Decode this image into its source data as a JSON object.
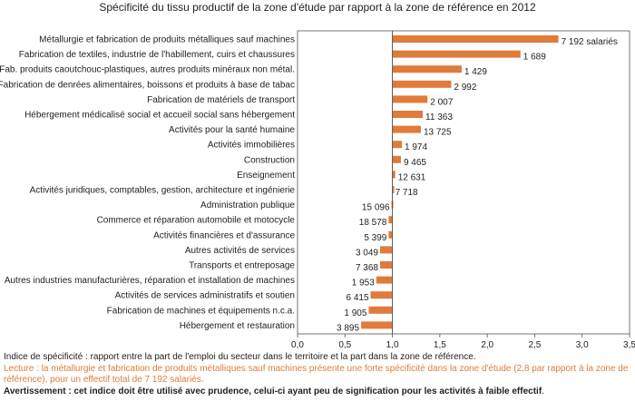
{
  "chart_data": {
    "type": "bar",
    "orientation": "horizontal",
    "title": "Spécificité du tissu productif de la zone d'étude par rapport à la zone de référence en 2012",
    "categories": [
      "Métallurgie et fabrication de produits métalliques sauf machines",
      "Fabrication de textiles, industrie de l'habillement, cuirs et chaussures",
      "Fab. produits caoutchouc-plastiques, autres produits minéraux non métal.",
      "Fabrication de denrées alimentaires, boissons et produits à base de tabac",
      "Fabrication de matériels de transport",
      "Hébergement médicalisé social et accueil social sans hébergement",
      "Activités pour la santé humaine",
      "Activités immobilières",
      "Construction",
      "Enseignement",
      "Activités juridiques, comptables, gestion, architecture et ingénierie",
      "Administration publique",
      "Commerce et réparation automobile et motocycle",
      "Activités financières et d'assurance",
      "Autres activités de services",
      "Transports et entreposage",
      "Autres industries manufacturières, réparation et installation de machines",
      "Activités de services administratifs et soutien",
      "Fabrication de machines et équipements n.c.a.",
      "Hébergement et restauration"
    ],
    "values": [
      2.75,
      2.35,
      1.73,
      1.62,
      1.37,
      1.32,
      1.3,
      1.1,
      1.09,
      1.03,
      1.0,
      0.99,
      0.96,
      0.96,
      0.87,
      0.87,
      0.83,
      0.77,
      0.75,
      0.67
    ],
    "data_labels": [
      "7 192 salariés",
      "1 689",
      "1 429",
      "2 992",
      "2 007",
      "11 363",
      "13 725",
      "1 974",
      "9 465",
      "12 631",
      "7 718",
      "15 096",
      "18 578",
      "5 399",
      "3 049",
      "7 368",
      "1 953",
      "6 415",
      "1 905",
      "3 895"
    ],
    "xlim": [
      0,
      3.5
    ],
    "x_ticks": [
      0,
      0.5,
      1,
      1.5,
      2,
      2.5,
      3,
      3.5
    ],
    "x_tick_labels": [
      "0,0",
      "0,5",
      "1,0",
      "1,5",
      "2,0",
      "2,5",
      "3,0",
      "3,5"
    ],
    "reference_line": 1.0,
    "xlabel": "",
    "ylabel": "",
    "grid": false,
    "legend": "none",
    "colors": {
      "bar": "#e07b39",
      "axis": "#555555",
      "text": "#222222",
      "reading_note": "#e07b39"
    }
  },
  "notes": {
    "definition": "Indice de spécificité : rapport entre la part de l'emploi du secteur dans le territoire et la part dans la zone de référence.",
    "reading": "Lecture : la métallurgie et fabrication de produits métalliques sauf machines présente une forte spécificité dans la zone d'étude (2,8 par rapport à la zone de référence), pour un effectif total de 7 192 salariés.",
    "warning": "Avertissement : cet indice doit être utilisé avec prudence, celui-ci ayant peu de signification pour les activités à faible effectif",
    "warning_end": "."
  }
}
